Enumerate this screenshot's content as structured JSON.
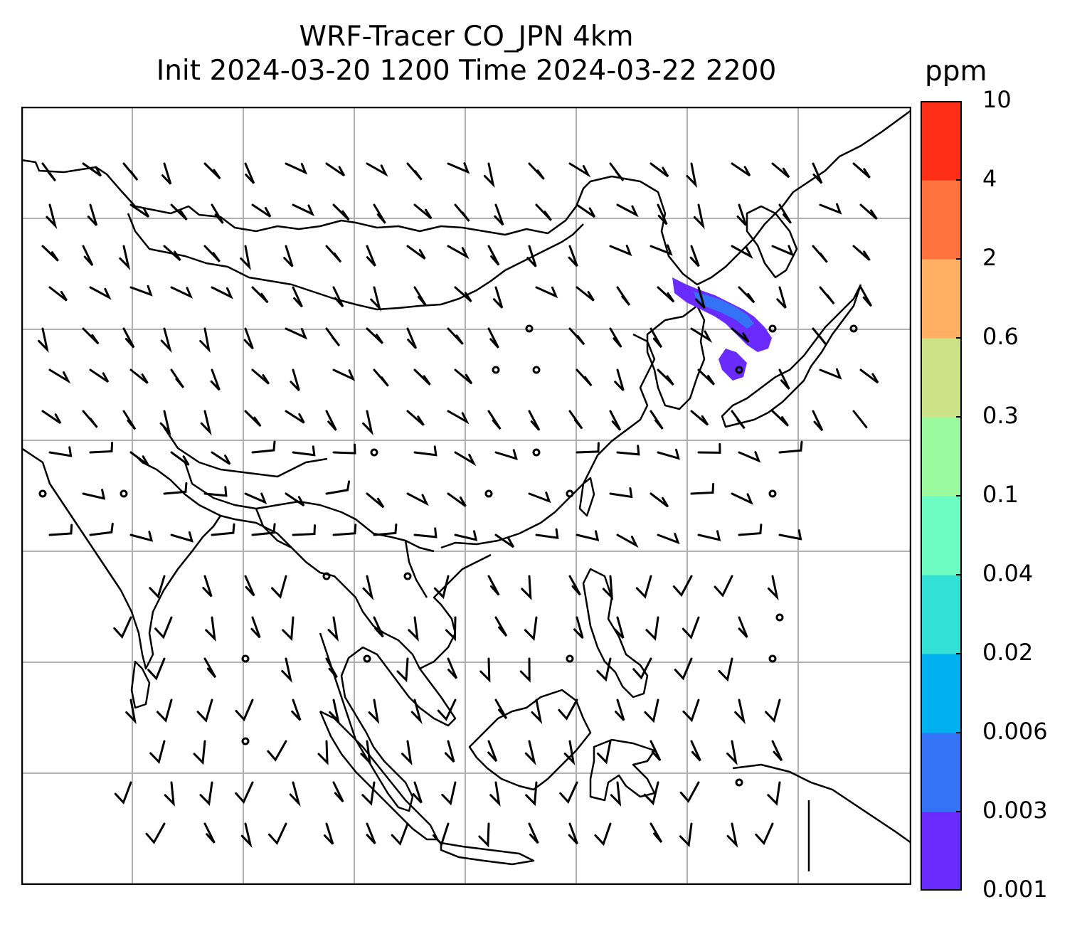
{
  "title": {
    "line1": "WRF-Tracer CO_JPN 4km",
    "line2": "Init 2024-03-20 1200 Time 2024-03-22 2200"
  },
  "colorbar": {
    "unit": "ppm",
    "levels": [
      "0.001",
      "0.003",
      "0.006",
      "0.02",
      "0.04",
      "0.1",
      "0.3",
      "0.6",
      "2",
      "4",
      "10"
    ],
    "colors": [
      "#6a2bff",
      "#3472f6",
      "#00b0ef",
      "#33e0d5",
      "#6dfdc2",
      "#9afa9d",
      "#cde187",
      "#ffb062",
      "#ff713d",
      "#ff2f17"
    ]
  },
  "map": {
    "projection": "regional lat-lon, East/Southeast Asia",
    "gridlines": true,
    "plume_color_level": "0.001-0.003 / 0.003-0.006",
    "plume_region": "northeast China / Korea / southern Manchuria"
  }
}
